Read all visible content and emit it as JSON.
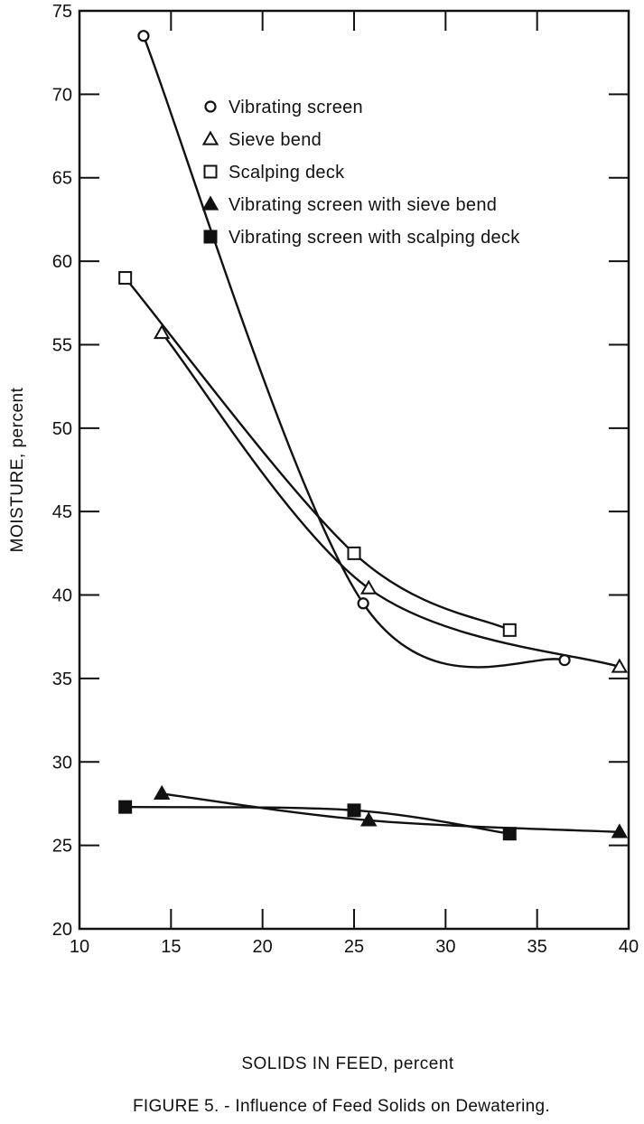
{
  "chart_data": {
    "type": "line",
    "caption": "FIGURE 5. - Influence of Feed Solids on Dewatering.",
    "xlabel": "SOLIDS IN FEED, percent",
    "ylabel": "MOISTURE, percent",
    "xlim": [
      10,
      40
    ],
    "ylim": [
      20,
      75
    ],
    "xticks": [
      10,
      15,
      20,
      25,
      30,
      35,
      40
    ],
    "yticks": [
      20,
      25,
      30,
      35,
      40,
      45,
      50,
      55,
      60,
      65,
      70,
      75
    ],
    "grid": false,
    "legend_position": "top-right",
    "series": [
      {
        "name": "Vibrating screen",
        "marker": "circle-open",
        "points": [
          [
            13.5,
            73.5
          ],
          [
            25.5,
            39.5
          ],
          [
            36.5,
            36.1
          ]
        ]
      },
      {
        "name": "Sieve bend",
        "marker": "triangle-open",
        "points": [
          [
            14.5,
            55.7
          ],
          [
            25.8,
            40.4
          ],
          [
            39.5,
            35.7
          ]
        ]
      },
      {
        "name": "Scalping deck",
        "marker": "square-open",
        "points": [
          [
            12.5,
            59.0
          ],
          [
            25.0,
            42.5
          ],
          [
            33.5,
            37.9
          ]
        ]
      },
      {
        "name": "Vibrating screen with sieve bend",
        "marker": "triangle-filled",
        "points": [
          [
            14.5,
            28.1
          ],
          [
            25.8,
            26.5
          ],
          [
            39.5,
            25.8
          ]
        ]
      },
      {
        "name": "Vibrating screen with scalping deck",
        "marker": "square-filled",
        "points": [
          [
            12.5,
            27.3
          ],
          [
            25.0,
            27.1
          ],
          [
            33.5,
            25.7
          ]
        ]
      }
    ]
  }
}
